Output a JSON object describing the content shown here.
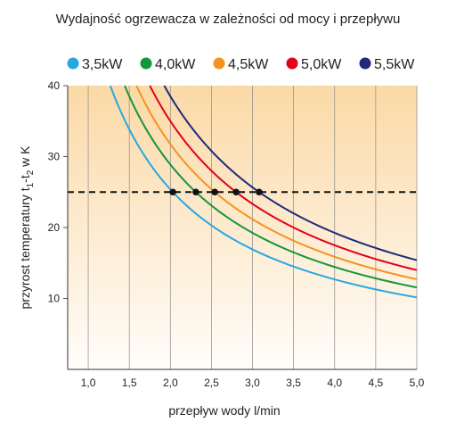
{
  "chart_data": {
    "type": "line",
    "title": "Wydajność ogrzewacza w zależności od mocy i przepływu",
    "xlabel": "przepływ wody l/min",
    "ylabel_main": "przyrost temperatury t",
    "ylabel_sub1": "1",
    "ylabel_dash": "-t",
    "ylabel_sub2": "2",
    "ylabel_unit": " w K",
    "xlim": [
      0.75,
      5.0
    ],
    "ylim": [
      0,
      40
    ],
    "x_ticks": [
      {
        "value": 1.0,
        "label": "1,0"
      },
      {
        "value": 1.5,
        "label": "1,5"
      },
      {
        "value": 2.0,
        "label": "2,0"
      },
      {
        "value": 2.5,
        "label": "2,5"
      },
      {
        "value": 3.0,
        "label": "3,0"
      },
      {
        "value": 3.5,
        "label": "3,5"
      },
      {
        "value": 4.0,
        "label": "4,0"
      },
      {
        "value": 4.5,
        "label": "4,5"
      },
      {
        "value": 5.0,
        "label": "5,0"
      }
    ],
    "y_ticks": [
      {
        "value": 10,
        "label": "10"
      },
      {
        "value": 20,
        "label": "20"
      },
      {
        "value": 30,
        "label": "30"
      },
      {
        "value": 40,
        "label": "40"
      }
    ],
    "grid": "vertical",
    "legend_position": "top",
    "reference_line": {
      "y": 25,
      "style": "dashed"
    },
    "series": [
      {
        "name": "3,5kW",
        "color": "#29a8e0",
        "power_kw": 3.5,
        "x": [
          1.25,
          1.5,
          1.75,
          2.0,
          2.25,
          2.5,
          2.75,
          3.0,
          3.25,
          3.5,
          3.75,
          4.0,
          4.25,
          4.5,
          4.75,
          5.0
        ],
        "y": [
          40.0,
          33.3,
          28.6,
          25.0,
          22.2,
          20.0,
          18.2,
          16.7,
          15.4,
          14.3,
          13.3,
          12.5,
          11.8,
          11.1,
          10.5,
          10.0
        ],
        "point_at_25": 2.03
      },
      {
        "name": "4,0kW",
        "color": "#14963c",
        "power_kw": 4.0,
        "x": [
          1.43,
          1.75,
          2.0,
          2.25,
          2.5,
          2.75,
          3.0,
          3.25,
          3.5,
          3.75,
          4.0,
          4.25,
          4.5,
          4.75,
          5.0
        ],
        "y": [
          40.0,
          32.7,
          28.6,
          25.4,
          22.9,
          20.8,
          19.0,
          17.6,
          16.3,
          15.2,
          14.3,
          13.4,
          12.7,
          12.0,
          11.4
        ],
        "point_at_25": 2.31
      },
      {
        "name": "4,5kW",
        "color": "#f39320",
        "power_kw": 4.5,
        "x": [
          1.6,
          1.75,
          2.0,
          2.25,
          2.5,
          2.75,
          3.0,
          3.25,
          3.5,
          3.75,
          4.0,
          4.25,
          4.5,
          4.75,
          5.0
        ],
        "y": [
          40.0,
          36.7,
          32.1,
          28.6,
          25.7,
          23.4,
          21.4,
          19.8,
          18.4,
          17.1,
          16.1,
          15.1,
          14.3,
          13.5,
          12.9
        ],
        "point_at_25": 2.54
      },
      {
        "name": "5,0kW",
        "color": "#e3001b",
        "power_kw": 5.0,
        "x": [
          1.75,
          2.0,
          2.25,
          2.5,
          2.75,
          3.0,
          3.25,
          3.5,
          3.75,
          4.0,
          4.25,
          4.5,
          4.75,
          5.0
        ],
        "y": [
          40.0,
          35.7,
          31.7,
          28.6,
          26.0,
          23.8,
          22.0,
          20.4,
          19.0,
          17.9,
          16.8,
          15.9,
          15.0,
          14.3
        ],
        "point_at_25": 2.8
      },
      {
        "name": "5,5kW",
        "color": "#1f2a7a",
        "power_kw": 5.5,
        "x": [
          1.96,
          2.25,
          2.5,
          2.75,
          3.0,
          3.25,
          3.5,
          3.75,
          4.0,
          4.25,
          4.5,
          4.75,
          5.0
        ],
        "y": [
          40.0,
          34.9,
          31.4,
          28.6,
          26.2,
          24.2,
          22.4,
          20.9,
          19.6,
          18.5,
          17.5,
          16.5,
          15.7
        ],
        "point_at_25": 3.08
      }
    ]
  }
}
